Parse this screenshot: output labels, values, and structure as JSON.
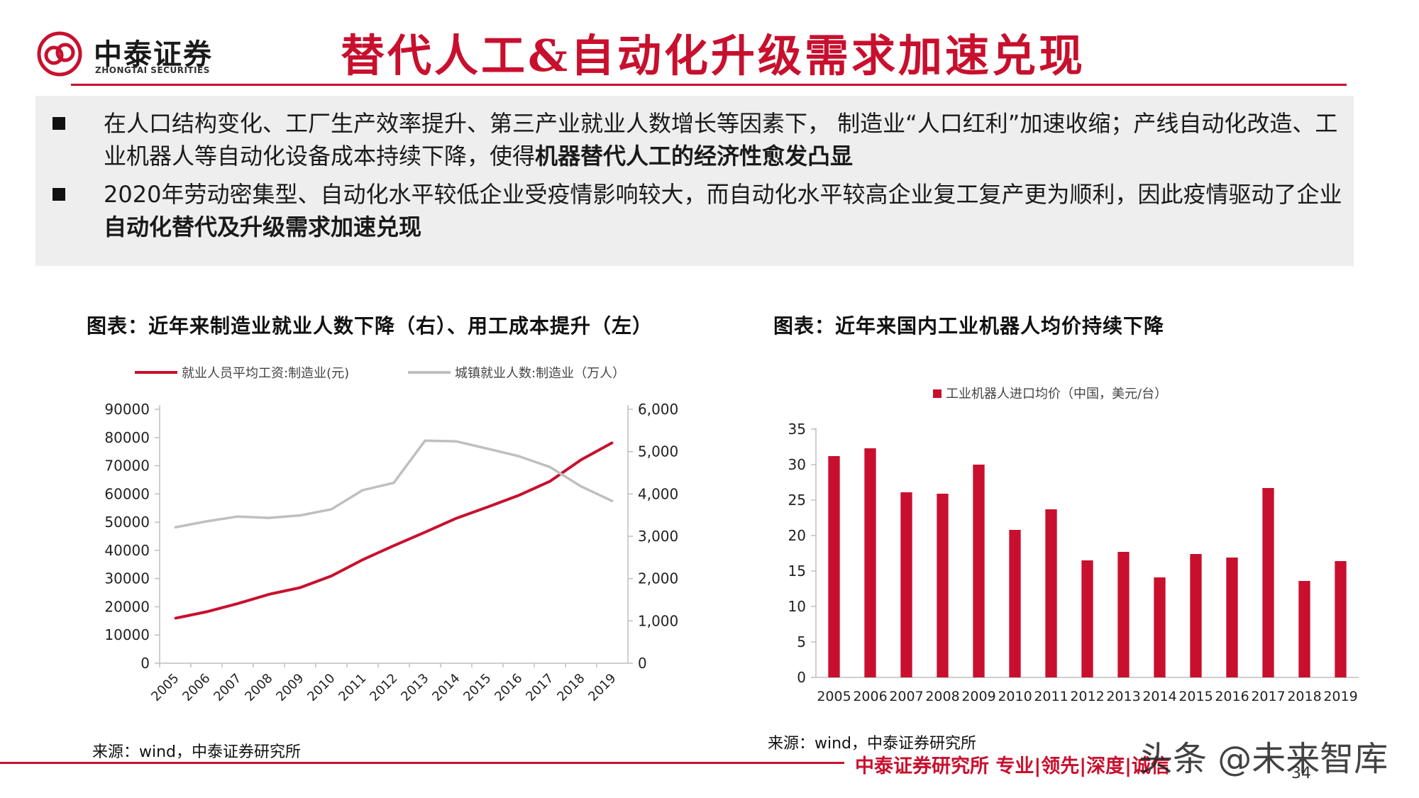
{
  "brand": {
    "name": "中泰证券",
    "sub": "ZHONGTAI SECURITIES",
    "color": "#c8102e"
  },
  "page_title": "替代人工&自动化升级需求加速兑现",
  "bullets": [
    {
      "text": "在人口结构变化、工厂生产效率提升、第三产业就业人数增长等因素下， 制造业“人口红利”加速收缩；产线自动化改造、工业机器人等自动化设备成本持续下降，使得",
      "bold": "机器替代人工的经济性愈发凸显"
    },
    {
      "text": "2020年劳动密集型、自动化水平较低企业受疫情影响较大，而自动化水平较高企业复工复产更为顺利，因此疫情驱动了企业",
      "bold": "自动化替代及升级需求加速兑现"
    }
  ],
  "chart_data": [
    {
      "type": "line",
      "title": "图表：近年来制造业就业人数下降（右）、用工成本提升（左）",
      "x": [
        "2005",
        "2006",
        "2007",
        "2008",
        "2009",
        "2010",
        "2011",
        "2012",
        "2013",
        "2014",
        "2015",
        "2016",
        "2017",
        "2018",
        "2019"
      ],
      "series": [
        {
          "name": "就业人员平均工资:制造业(元)",
          "axis": "left",
          "color": "#c8102e",
          "values": [
            15934,
            18225,
            21144,
            24404,
            26810,
            30916,
            36665,
            41650,
            46431,
            51369,
            55324,
            59470,
            64452,
            72088,
            78147
          ]
        },
        {
          "name": "城镇就业人数:制造业（万人）",
          "axis": "right",
          "color": "#bfbfbf",
          "values": [
            3211,
            3352,
            3466,
            3434,
            3492,
            3637,
            4088,
            4262,
            5258,
            5243,
            5069,
            4894,
            4636,
            4178,
            3832
          ]
        }
      ],
      "left_axis": {
        "ylim": [
          0,
          90000
        ],
        "ticks": [
          "0",
          "10000",
          "20000",
          "30000",
          "40000",
          "50000",
          "60000",
          "70000",
          "80000",
          "90000"
        ]
      },
      "right_axis": {
        "ylim": [
          0,
          6000
        ],
        "ticks": [
          "0",
          "1,000",
          "2,000",
          "3,000",
          "4,000",
          "5,000",
          "6,000"
        ]
      },
      "legend": "top"
    },
    {
      "type": "bar",
      "title": "图表：近年来国内工业机器人均价持续下降",
      "categories": [
        "2005",
        "2006",
        "2007",
        "2008",
        "2009",
        "2010",
        "2011",
        "2012",
        "2013",
        "2014",
        "2015",
        "2016",
        "2017",
        "2018",
        "2019"
      ],
      "series": [
        {
          "name": "工业机器人进口均价（中国，美元/台）",
          "color": "#c8102e",
          "values": [
            31.2,
            32.3,
            26.1,
            25.9,
            30.0,
            20.8,
            23.7,
            16.5,
            17.7,
            14.1,
            17.4,
            16.9,
            26.7,
            13.6,
            16.4
          ]
        }
      ],
      "ylim": [
        0,
        35
      ],
      "ticks": [
        "0",
        "5",
        "10",
        "15",
        "20",
        "25",
        "30",
        "35"
      ],
      "legend": "top"
    }
  ],
  "sources": {
    "left": "来源：wind，中泰证券研究所",
    "right": "来源：wind，中泰证券研究所"
  },
  "footer": {
    "text": "中泰证券研究所 专业|领先|深度|诚信",
    "page": "34"
  },
  "watermark": "头条 @未来智库"
}
